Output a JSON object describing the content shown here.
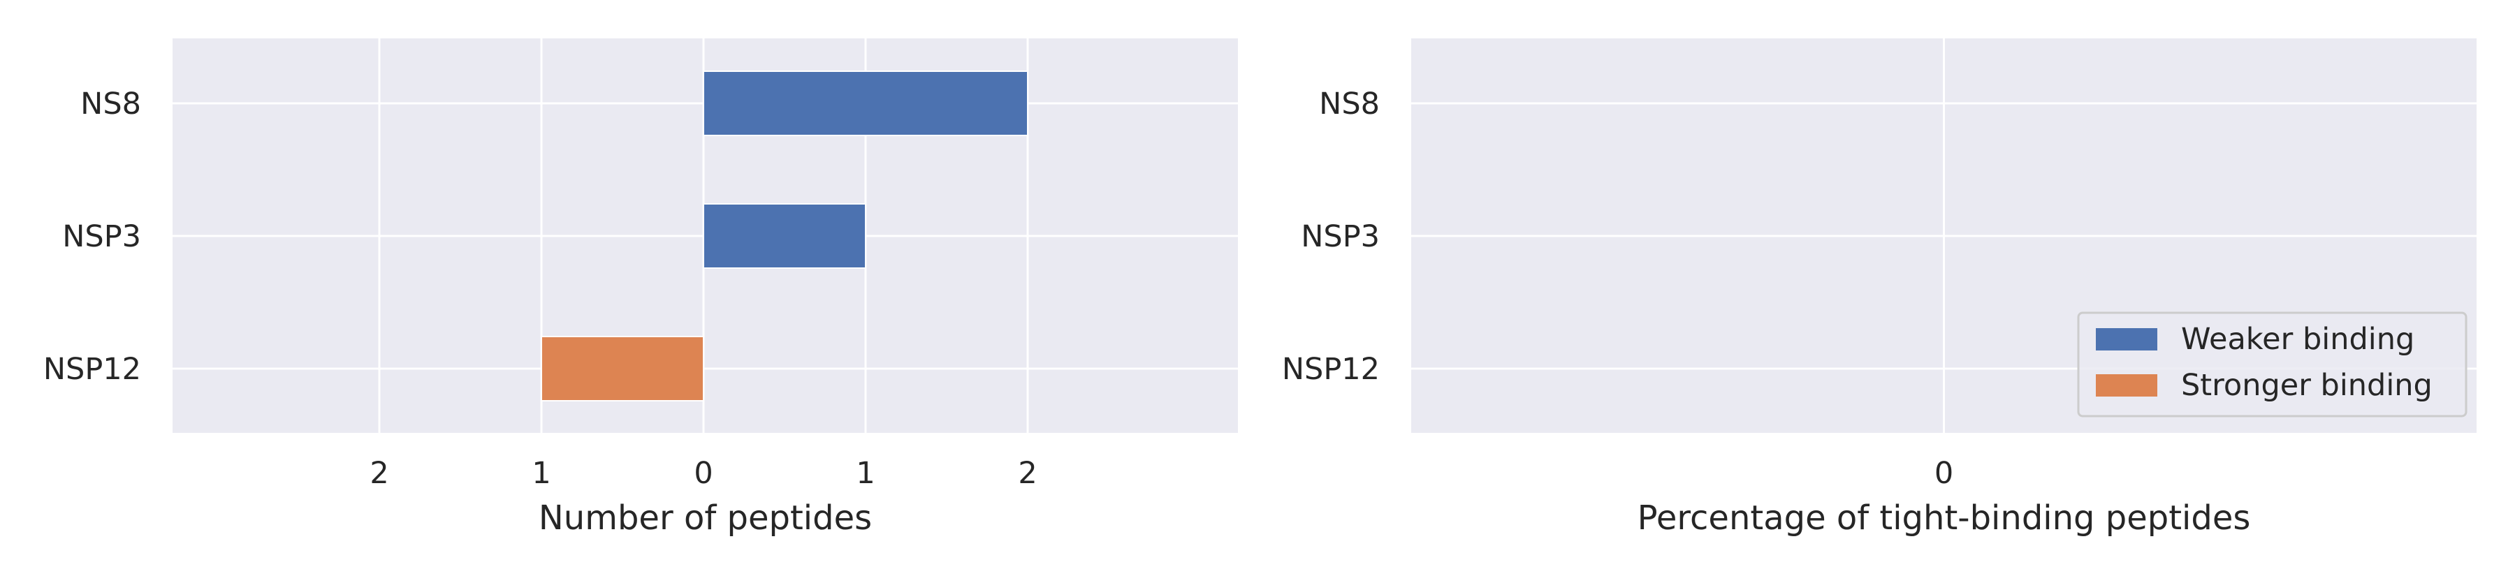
{
  "chart_data": [
    {
      "type": "bar",
      "orientation": "horizontal",
      "diverging": true,
      "categories": [
        "NS8",
        "NSP3",
        "NSP12"
      ],
      "series": [
        {
          "name": "Weaker binding",
          "color": "#4c72b0",
          "values": [
            2,
            1,
            0
          ]
        },
        {
          "name": "Stronger binding",
          "color": "#dd8452",
          "values": [
            0,
            0,
            1
          ]
        }
      ],
      "xlabel": "Number of peptides",
      "xticks": [
        "2",
        "1",
        "0",
        "1",
        "2"
      ],
      "xlim": [
        -3,
        3.5
      ],
      "grid": true
    },
    {
      "type": "bar",
      "orientation": "horizontal",
      "categories": [
        "NS8",
        "NSP3",
        "NSP12"
      ],
      "series": [
        {
          "name": "Weaker binding",
          "color": "#4c72b0",
          "values": [
            0,
            0,
            0
          ]
        },
        {
          "name": "Stronger binding",
          "color": "#dd8452",
          "values": [
            0,
            0,
            0
          ]
        }
      ],
      "xlabel": "Percentage of tight-binding peptides",
      "xticks": [
        "0"
      ],
      "grid": true,
      "legend": {
        "position": "lower-right",
        "entries": [
          {
            "label": "Weaker binding",
            "color": "#4c72b0"
          },
          {
            "label": "Stronger binding",
            "color": "#dd8452"
          }
        ]
      }
    }
  ],
  "style": {
    "plot_background": "#eaeaf2",
    "grid_color": "#ffffff",
    "text_color": "#262626"
  }
}
